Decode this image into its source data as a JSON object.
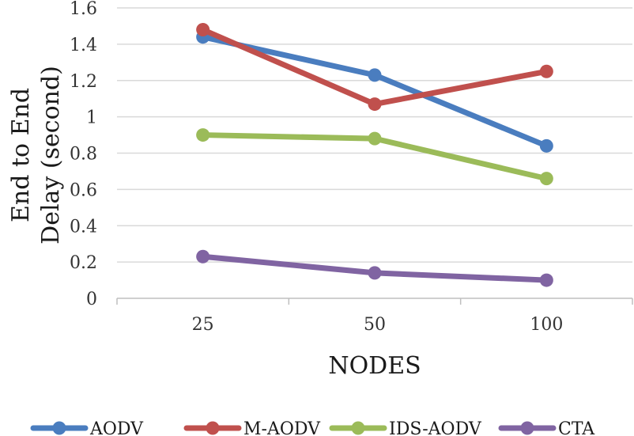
{
  "chart_data": {
    "type": "line",
    "title": "",
    "xlabel": "NODES",
    "ylabel_lines": [
      "End to End",
      "Delay (second)"
    ],
    "categories": [
      "25",
      "50",
      "100"
    ],
    "ylim": [
      0,
      1.6
    ],
    "yticks": [
      "0",
      "0.2",
      "0.4",
      "0.6",
      "0.8",
      "1",
      "1.2",
      "1.4",
      "1.6"
    ],
    "yticks_values": [
      0,
      0.2,
      0.4,
      0.6,
      0.8,
      1.0,
      1.2,
      1.4,
      1.6
    ],
    "grid": true,
    "legend_position": "bottom",
    "series": [
      {
        "name": "AODV",
        "color": "#4a7dbf",
        "values": [
          1.44,
          1.23,
          0.84
        ]
      },
      {
        "name": "M-AODV",
        "color": "#c0504d",
        "values": [
          1.48,
          1.07,
          1.25
        ]
      },
      {
        "name": "IDS-AODV",
        "color": "#9bbb59",
        "values": [
          0.9,
          0.88,
          0.66
        ]
      },
      {
        "name": "CTA",
        "color": "#8064a2",
        "values": [
          0.23,
          0.14,
          0.1
        ]
      }
    ]
  }
}
